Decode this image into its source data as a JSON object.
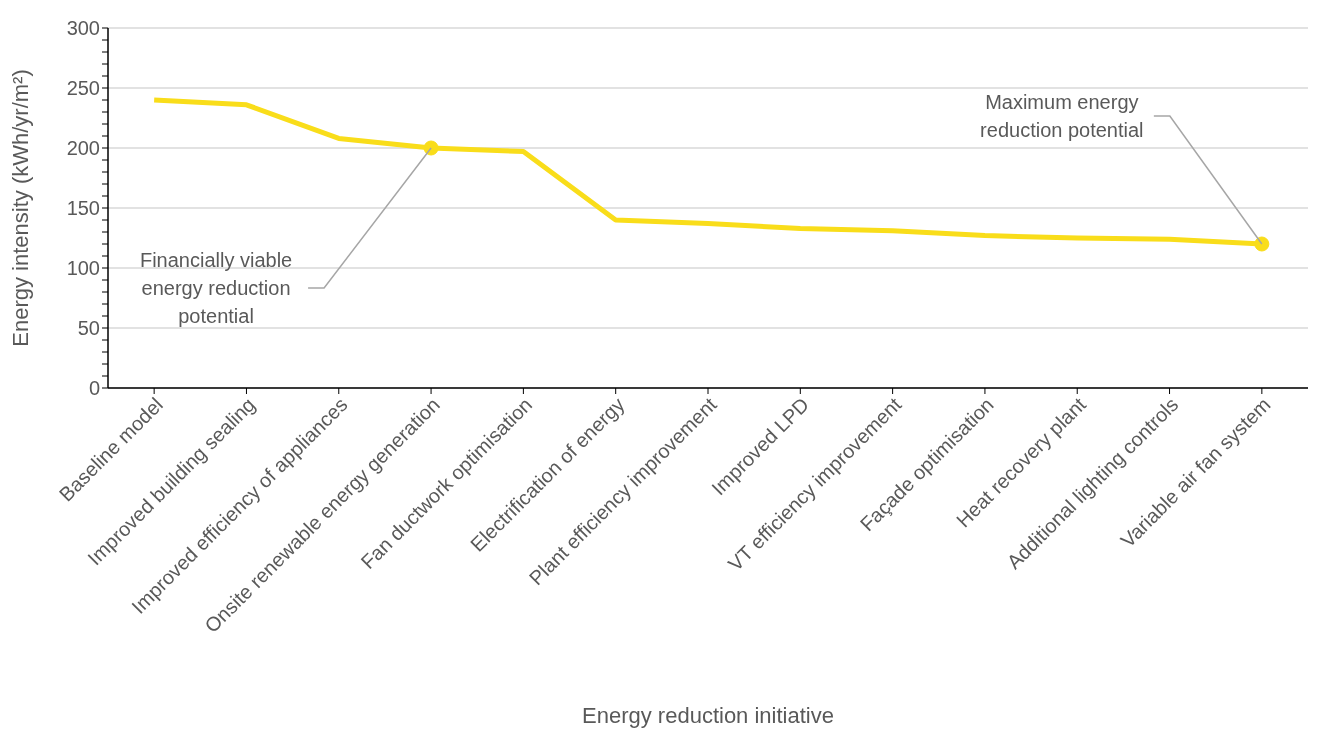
{
  "chart_data": {
    "type": "line",
    "xlabel": "Energy reduction initiative",
    "ylabel": "Energy intensity (kWh/yr/m²)",
    "categories": [
      "Baseline model",
      "Improved building sealing",
      "Improved efficiency of appliances",
      "Onsite renewable energy generation",
      "Fan ductwork optimisation",
      "Electrification of energy",
      "Plant efficiency improvement",
      "Improved LPD",
      "VT efficiency improvement",
      "Façade optimisation",
      "Heat recovery plant",
      "Additional lighting controls",
      "Variable air fan system"
    ],
    "series": [
      {
        "color": "#f9dd1a",
        "values": [
          240,
          236,
          208,
          200,
          197,
          140,
          137,
          133,
          131,
          127,
          125,
          124,
          120
        ]
      }
    ],
    "ylim": [
      0,
      300
    ],
    "yticks": [
      0,
      {
        "value": 10,
        "label": null
      },
      {
        "value": 20,
        "label": null
      },
      {
        "value": 30,
        "label": null
      },
      {
        "value": 40,
        "label": null
      },
      50,
      {
        "value": 60,
        "label": null
      },
      {
        "value": 70,
        "label": null
      },
      {
        "value": 80,
        "label": null
      },
      {
        "value": 90,
        "label": null
      },
      100,
      {
        "value": 110,
        "label": null
      },
      {
        "value": 120,
        "label": null
      },
      {
        "value": 130,
        "label": null
      },
      {
        "value": 140,
        "label": null
      },
      150,
      {
        "value": 160,
        "label": null
      },
      {
        "value": 170,
        "label": null
      },
      {
        "value": 180,
        "label": null
      },
      {
        "value": 190,
        "label": null
      },
      200,
      {
        "value": 210,
        "label": null
      },
      {
        "value": 220,
        "label": null
      },
      {
        "value": 230,
        "label": null
      },
      {
        "value": 240,
        "label": null
      },
      250,
      {
        "value": 260,
        "label": null
      },
      {
        "value": 270,
        "label": null
      },
      {
        "value": 280,
        "label": null
      },
      {
        "value": 290,
        "label": null
      },
      300
    ],
    "grid": "y",
    "marker": "none",
    "line_style": "solid",
    "annotations": [
      {
        "text": "Financially viable energy reduction potential",
        "x": "Onsite renewable energy generation",
        "y": 200
      },
      {
        "text": "Maximum energy reduction potential",
        "x": "Variable air fan system",
        "y": 120
      }
    ]
  }
}
